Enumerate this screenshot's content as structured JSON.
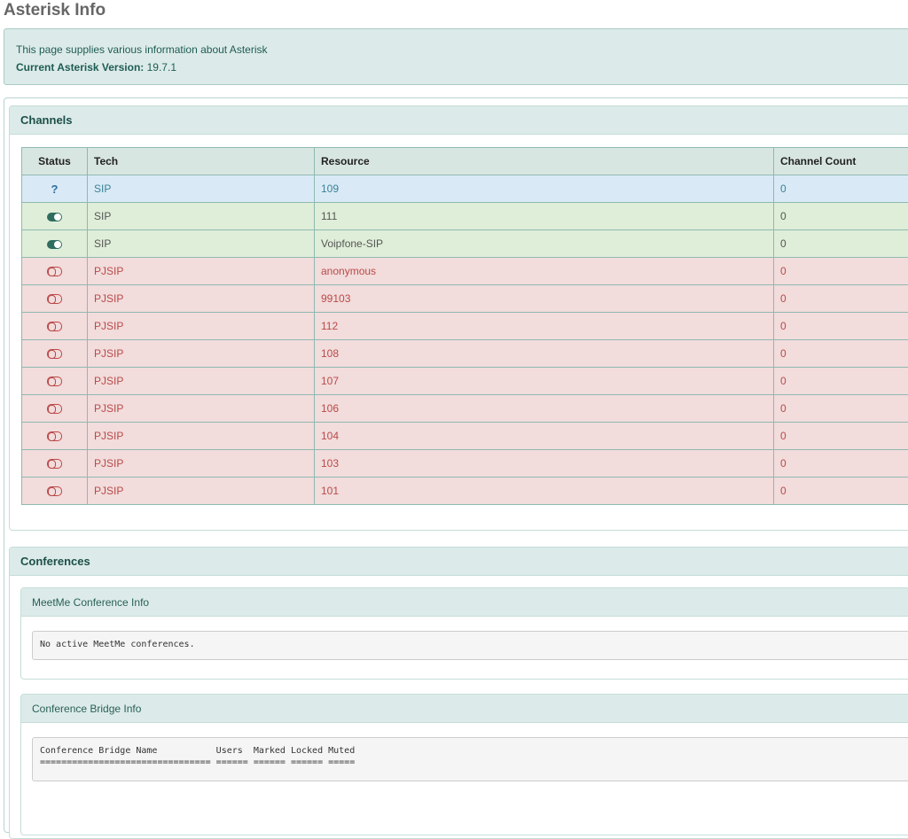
{
  "page": {
    "title": "Asterisk Info"
  },
  "info": {
    "description": "This page supplies various information about Asterisk",
    "version_label": "Current Asterisk Version:",
    "version_value": "19.7.1"
  },
  "channels": {
    "heading": "Channels",
    "columns": [
      "Status",
      "Tech",
      "Resource",
      "Channel Count"
    ],
    "rows": [
      {
        "status": "unknown",
        "tech": "SIP",
        "resource": "109",
        "count": "0"
      },
      {
        "status": "online",
        "tech": "SIP",
        "resource": "111",
        "count": "0"
      },
      {
        "status": "online",
        "tech": "SIP",
        "resource": "Voipfone-SIP",
        "count": "0"
      },
      {
        "status": "offline",
        "tech": "PJSIP",
        "resource": "anonymous",
        "count": "0"
      },
      {
        "status": "offline",
        "tech": "PJSIP",
        "resource": "99103",
        "count": "0"
      },
      {
        "status": "offline",
        "tech": "PJSIP",
        "resource": "112",
        "count": "0"
      },
      {
        "status": "offline",
        "tech": "PJSIP",
        "resource": "108",
        "count": "0"
      },
      {
        "status": "offline",
        "tech": "PJSIP",
        "resource": "107",
        "count": "0"
      },
      {
        "status": "offline",
        "tech": "PJSIP",
        "resource": "106",
        "count": "0"
      },
      {
        "status": "offline",
        "tech": "PJSIP",
        "resource": "104",
        "count": "0"
      },
      {
        "status": "offline",
        "tech": "PJSIP",
        "resource": "103",
        "count": "0"
      },
      {
        "status": "offline",
        "tech": "PJSIP",
        "resource": "101",
        "count": "0"
      }
    ],
    "status_icons": {
      "unknown": "question-mark-icon",
      "online": "toggle-on-icon",
      "offline": "toggle-off-icon"
    },
    "status_glyphs": {
      "unknown": "?"
    }
  },
  "conferences": {
    "heading": "Conferences",
    "meetme": {
      "heading": "MeetMe Conference Info",
      "output": "No active MeetMe conferences."
    },
    "bridge": {
      "heading": "Conference Bridge Info",
      "output": "Conference Bridge Name           Users  Marked Locked Muted\n================================ ====== ====== ====== ====="
    }
  },
  "colors": {
    "accent": "#1c4f49",
    "panel_bg": "#dcebe9",
    "unknown_row": "#d9eaf6",
    "online_row": "#dfeed8",
    "offline_row": "#f2dcdc"
  }
}
